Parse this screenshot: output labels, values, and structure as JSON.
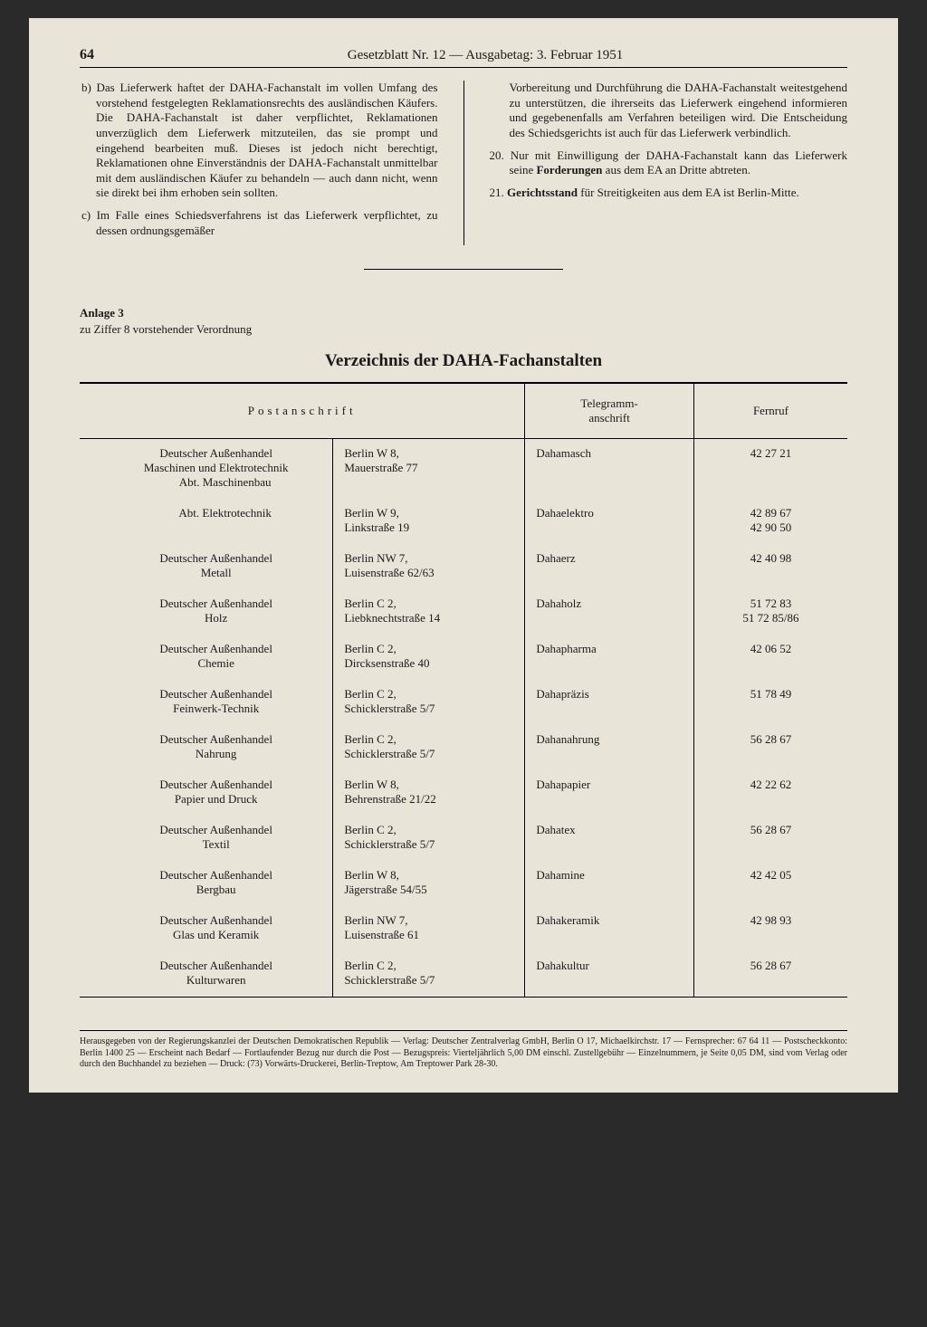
{
  "page": {
    "number": "64",
    "header": "Gesetzblatt Nr. 12 — Ausgabetag: 3. Februar 1951"
  },
  "colors": {
    "paper": "#e8e4d8",
    "text": "#1a1a1a",
    "rule": "#000000",
    "outer_bg": "#2a2a2a"
  },
  "left_column": {
    "item_b": "b) Das Lieferwerk haftet der DAHA-Fachanstalt im vollen Umfang des vorstehend festgelegten Reklamationsrechts des ausländischen Käufers. Die DAHA-Fachanstalt ist daher verpflichtet, Reklamationen unverzüglich dem Lieferwerk mitzuteilen, das sie prompt und eingehend bearbeiten muß. Dieses ist jedoch nicht berechtigt, Reklamationen ohne Einverständnis der DAHA-Fachanstalt unmittelbar mit dem ausländischen Käufer zu behandeln — auch dann nicht, wenn sie direkt bei ihm erhoben sein sollten.",
    "item_c": "c) Im Falle eines Schiedsverfahrens ist das Lieferwerk verpflichtet, zu dessen ordnungsgemäßer"
  },
  "right_column": {
    "cont": "Vorbereitung und Durchführung die DAHA-Fachanstalt weitestgehend zu unterstützen, die ihrerseits das Lieferwerk eingehend informieren und gegebenenfalls am Verfahren beteiligen wird. Die Entscheidung des Schiedsgerichts ist auch für das Lieferwerk verbindlich.",
    "n20_a": "20. Nur mit Einwilligung der DAHA-Fachanstalt kann das Lieferwerk seine ",
    "n20_b": "Forderungen",
    "n20_c": " aus dem EA an Dritte abtreten.",
    "n21_a": "21. ",
    "n21_b": "Gerichtsstand",
    "n21_c": " für Streitigkeiten aus dem EA ist Berlin-Mitte."
  },
  "anlage": {
    "head": "Anlage 3",
    "sub": "zu Ziffer 8 vorstehender Verordnung",
    "title": "Verzeichnis der DAHA-Fachanstalten"
  },
  "table": {
    "headers": {
      "postanschrift": "Postanschrift",
      "telegramm": "Telegramm-\nanschrift",
      "fernruf": "Fernruf"
    },
    "rows": [
      {
        "name": "Deutscher Außenhandel\nMaschinen und Elektrotechnik",
        "sub": "Abt. Maschinenbau",
        "addr": "Berlin W 8,\nMauerstraße 77",
        "tele": "Dahamasch",
        "fern": "42 27 21"
      },
      {
        "name": "",
        "sub": "Abt. Elektrotechnik",
        "addr": "Berlin W 9,\nLinkstraße 19",
        "tele": "Dahaelektro",
        "fern": "42 89 67\n42 90 50"
      },
      {
        "name": "Deutscher Außenhandel\nMetall",
        "sub": "",
        "addr": "Berlin NW 7,\nLuisenstraße 62/63",
        "tele": "Dahaerz",
        "fern": "42 40 98"
      },
      {
        "name": "Deutscher Außenhandel\nHolz",
        "sub": "",
        "addr": "Berlin C 2,\nLiebknechtstraße 14",
        "tele": "Dahaholz",
        "fern": "51 72 83\n51 72 85/86"
      },
      {
        "name": "Deutscher Außenhandel\nChemie",
        "sub": "",
        "addr": "Berlin C 2,\nDircksenstraße 40",
        "tele": "Dahapharma",
        "fern": "42 06 52"
      },
      {
        "name": "Deutscher Außenhandel\nFeinwerk-Technik",
        "sub": "",
        "addr": "Berlin C 2,\nSchicklerstraße 5/7",
        "tele": "Dahapräzis",
        "fern": "51 78 49"
      },
      {
        "name": "Deutscher Außenhandel\nNahrung",
        "sub": "",
        "addr": "Berlin C 2,\nSchicklerstraße 5/7",
        "tele": "Dahanahrung",
        "fern": "56 28 67"
      },
      {
        "name": "Deutscher Außenhandel\nPapier und Druck",
        "sub": "",
        "addr": "Berlin W 8,\nBehrenstraße 21/22",
        "tele": "Dahapapier",
        "fern": "42 22 62"
      },
      {
        "name": "Deutscher Außenhandel\nTextil",
        "sub": "",
        "addr": "Berlin C 2,\nSchicklerstraße 5/7",
        "tele": "Dahatex",
        "fern": "56 28 67"
      },
      {
        "name": "Deutscher Außenhandel\nBergbau",
        "sub": "",
        "addr": "Berlin W 8,\nJägerstraße 54/55",
        "tele": "Dahamine",
        "fern": "42 42 05"
      },
      {
        "name": "Deutscher Außenhandel\nGlas und Keramik",
        "sub": "",
        "addr": "Berlin NW 7,\nLuisenstraße 61",
        "tele": "Dahakeramik",
        "fern": "42 98 93"
      },
      {
        "name": "Deutscher Außenhandel\nKulturwaren",
        "sub": "",
        "addr": "Berlin C 2,\nSchicklerstraße 5/7",
        "tele": "Dahakultur",
        "fern": "56 28 67"
      }
    ]
  },
  "imprint": "Herausgegeben von der Regierungskanzlei der Deutschen Demokratischen Republik — Verlag: Deutscher Zentralverlag GmbH, Berlin O 17, Michaelkirchstr. 17 — Fernsprecher: 67 64 11 — Postscheckkonto: Berlin 1400 25 — Erscheint nach Bedarf — Fortlaufender Bezug nur durch die Post — Bezugspreis: Vierteljährlich 5,00 DM einschl. Zustellgebühr — Einzelnummern, je Seite 0,05 DM, sind vom Verlag oder durch den Buchhandel zu beziehen — Druck: (73) Vorwärts-Druckerei, Berlin-Treptow, Am Treptower Park 28-30."
}
